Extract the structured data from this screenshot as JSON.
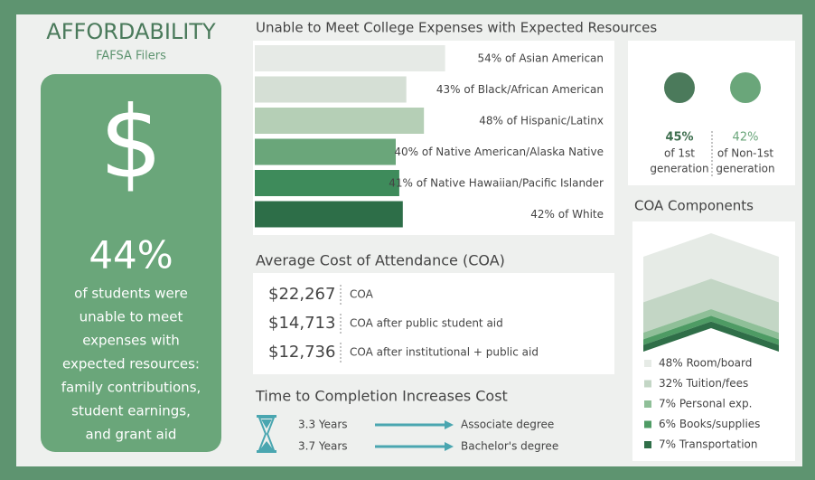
{
  "title": "AFFORDABILITY",
  "subtitle": "FAFSA Filers",
  "highlight": {
    "symbol": "$",
    "figure": "44%",
    "lines": [
      "of students were",
      "unable to meet",
      "expenses with",
      "expected resources:",
      "family contributions,",
      "student earnings,",
      "and grant aid"
    ]
  },
  "bars": {
    "title": "Unable to Meet College Expenses with Expected Resources",
    "values": [
      54,
      43,
      48,
      40,
      41,
      42
    ],
    "value_labels": [
      "54% of Asian American",
      "43% of Black/African American",
      "48% of Hispanic/Latinx",
      "40% of Native American/Alaska Native",
      "41% of Native Hawaiian/Pacific Islander",
      "42% of White"
    ],
    "colors": [
      "#e6eae6",
      "#d5dfd5",
      "#b5cfb6",
      "#6aa67a",
      "#3e8b5b",
      "#2d6e48"
    ]
  },
  "generation": [
    {
      "figure": "45%",
      "lines": [
        "of 1st",
        "generation"
      ],
      "color": "#4b7a5b"
    },
    {
      "figure": "42%",
      "lines": [
        "of Non-1st",
        "generation"
      ],
      "color": "#6aa67a"
    }
  ],
  "coa": {
    "title": "Average Cost of Attendance (COA)",
    "rows": [
      [
        "$22,267",
        "COA"
      ],
      [
        "$14,713",
        "COA after public student aid"
      ],
      [
        "$12,736",
        "COA after institutional + public aid"
      ]
    ]
  },
  "completion": {
    "title": "Time to Completion Increases Cost",
    "rows": [
      [
        "3.3 Years",
        "Associate degree"
      ],
      [
        "3.7 Years",
        "Bachelor's degree"
      ]
    ]
  },
  "components": {
    "title": "COA Components",
    "values": [
      48,
      32,
      7,
      6,
      7
    ],
    "value_labels": [
      "48% Room/board",
      "32% Tuition/fees",
      "7% Personal exp.",
      "6% Books/supplies",
      "7% Transportation"
    ],
    "colors": [
      "#e6ebe6",
      "#c3d6c5",
      "#8fbf98",
      "#4e9b64",
      "#2f6e48"
    ]
  }
}
